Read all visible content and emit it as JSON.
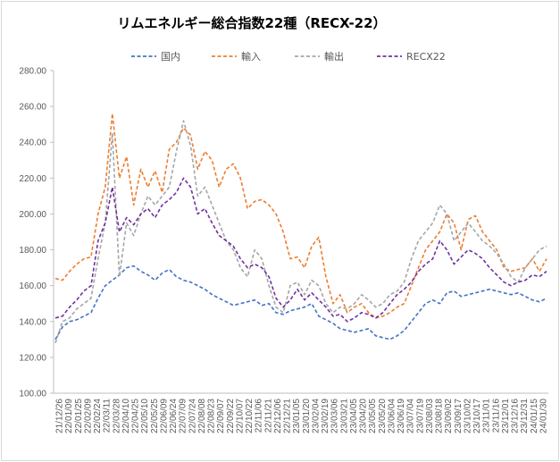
{
  "chart_data": {
    "type": "line",
    "title": "リムエネルギー総合指数22種（RECX-22）",
    "xlabel": "",
    "ylabel": "",
    "ylim": [
      100,
      280
    ],
    "y_ticks": [
      "100.00",
      "120.00",
      "140.00",
      "160.00",
      "180.00",
      "200.00",
      "220.00",
      "240.00",
      "260.00",
      "280.00"
    ],
    "x_tick_labels": [
      "21/12/26",
      "22/01/09",
      "22/01/25",
      "22/02/09",
      "22/02/24",
      "22/03/11",
      "22/03/28",
      "22/04/10",
      "22/04/25",
      "22/05/10",
      "22/05/25",
      "22/06/09",
      "22/06/24",
      "22/07/09",
      "22/07/24",
      "22/08/08",
      "22/08/23",
      "22/09/07",
      "22/09/22",
      "22/10/07",
      "22/10/22",
      "22/11/06",
      "22/11/21",
      "22/12/06",
      "22/12/21",
      "23/01/05",
      "23/01/20",
      "23/02/04",
      "23/02/19",
      "23/03/06",
      "23/03/21",
      "23/04/05",
      "23/04/20",
      "23/05/05",
      "23/05/20",
      "23/06/04",
      "23/06/19",
      "23/07/04",
      "23/07/19",
      "23/08/03",
      "23/08/18",
      "23/09/02",
      "23/09/17",
      "23/10/02",
      "23/10/17",
      "23/11/01",
      "23/11/16",
      "23/12/01",
      "23/12/16",
      "23/12/31",
      "24/01/15",
      "24/01/30"
    ],
    "grid": false,
    "legend_position": "top",
    "series": [
      {
        "name": "国内",
        "color": "#4472c4",
        "values": [
          130,
          137,
          140,
          141,
          143,
          145,
          153,
          160,
          163,
          166,
          170,
          171,
          168,
          166,
          163,
          167,
          169,
          165,
          163,
          162,
          160,
          158,
          155,
          153,
          151,
          149,
          150,
          151,
          152,
          149,
          150,
          145,
          144,
          146,
          147,
          148,
          150,
          143,
          141,
          139,
          136,
          135,
          134,
          135,
          136,
          132,
          131,
          130,
          132,
          135,
          140,
          145,
          150,
          152,
          150,
          156,
          157,
          154,
          155,
          156,
          157,
          158,
          157,
          156,
          155,
          156,
          154,
          152,
          151,
          153
        ]
      },
      {
        "name": "輸入",
        "color": "#ed7d31",
        "values": [
          164,
          163,
          168,
          172,
          175,
          176,
          200,
          215,
          256,
          220,
          232,
          205,
          225,
          215,
          224,
          212,
          236,
          240,
          248,
          244,
          225,
          235,
          230,
          215,
          225,
          228,
          220,
          203,
          207,
          208,
          205,
          200,
          190,
          175,
          176,
          170,
          182,
          187,
          165,
          150,
          155,
          145,
          148,
          150,
          145,
          142,
          143,
          145,
          148,
          150,
          160,
          170,
          180,
          185,
          190,
          200,
          195,
          180,
          197,
          199,
          190,
          185,
          180,
          170,
          168,
          169,
          170,
          175,
          168,
          175
        ]
      },
      {
        "name": "輸出",
        "color": "#a5a5a5",
        "values": [
          128,
          140,
          142,
          147,
          150,
          153,
          175,
          195,
          245,
          165,
          195,
          188,
          200,
          210,
          205,
          210,
          215,
          235,
          252,
          238,
          210,
          215,
          205,
          195,
          185,
          180,
          170,
          165,
          180,
          175,
          160,
          148,
          145,
          160,
          162,
          155,
          163,
          160,
          150,
          145,
          148,
          147,
          150,
          155,
          152,
          148,
          150,
          155,
          157,
          162,
          175,
          185,
          190,
          195,
          205,
          200,
          185,
          190,
          195,
          190,
          185,
          182,
          178,
          172,
          165,
          162,
          170,
          175,
          180,
          182
        ]
      },
      {
        "name": "RECX22",
        "color": "#7030a0",
        "values": [
          142,
          143,
          148,
          152,
          157,
          160,
          185,
          195,
          215,
          190,
          198,
          194,
          200,
          203,
          198,
          205,
          208,
          212,
          220,
          215,
          200,
          203,
          195,
          188,
          185,
          182,
          175,
          170,
          172,
          170,
          165,
          153,
          148,
          152,
          158,
          152,
          156,
          152,
          148,
          143,
          144,
          140,
          142,
          145,
          144,
          142,
          145,
          150,
          155,
          158,
          162,
          168,
          172,
          175,
          185,
          180,
          172,
          176,
          180,
          178,
          175,
          170,
          166,
          162,
          160,
          162,
          163,
          166,
          165,
          168
        ]
      }
    ]
  }
}
